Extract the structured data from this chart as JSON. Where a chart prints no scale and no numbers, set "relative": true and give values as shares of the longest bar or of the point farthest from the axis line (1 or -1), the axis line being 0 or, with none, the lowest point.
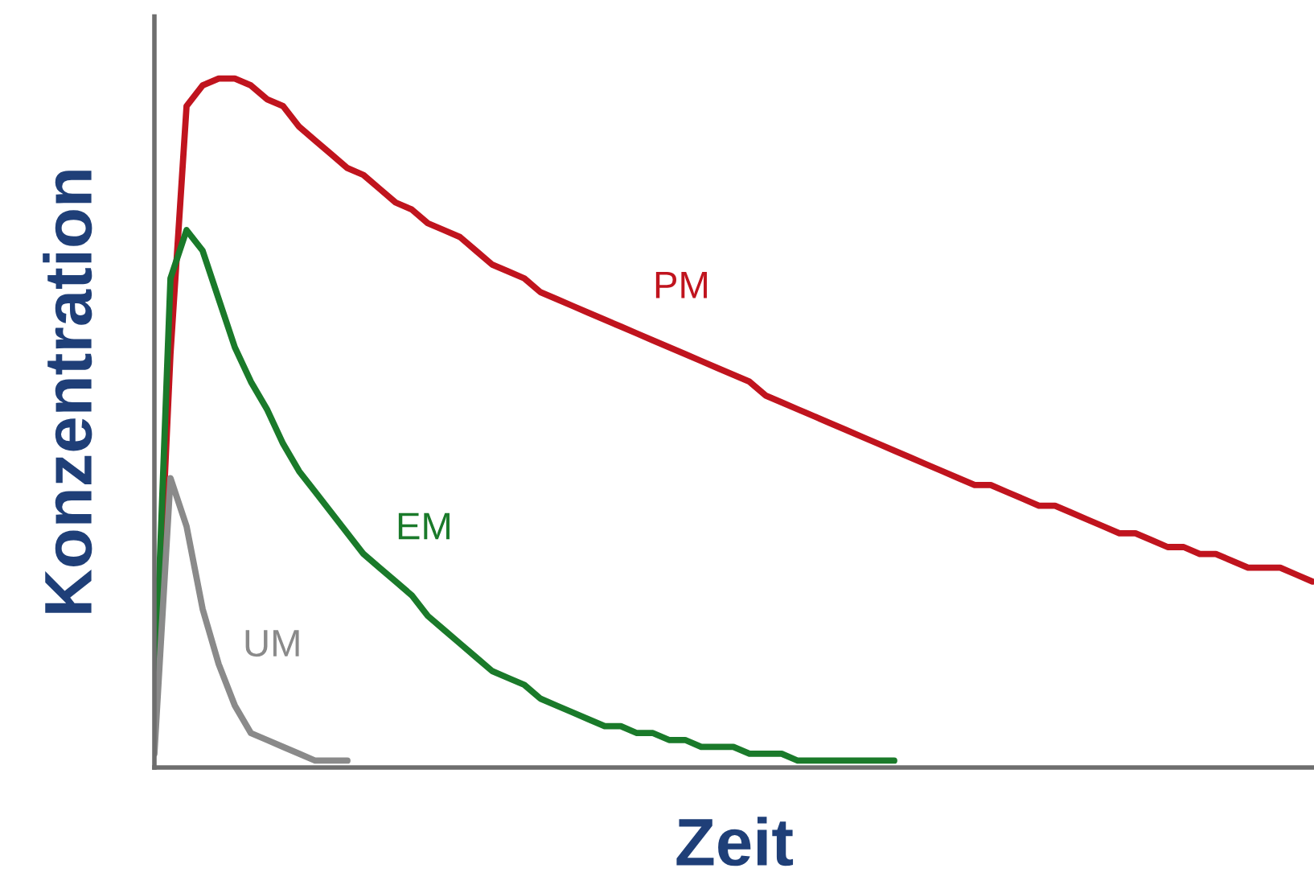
{
  "chart_data": {
    "type": "line",
    "relative": true,
    "xlabel": "Zeit",
    "ylabel": "Konzentration",
    "legend": false,
    "marker": "none",
    "line_style": "solid",
    "categories": [
      null,
      null,
      null,
      null,
      null,
      null,
      null,
      null,
      null,
      null,
      null,
      null,
      null,
      null,
      null,
      null,
      null,
      null,
      null,
      null,
      null,
      null,
      null,
      null,
      null,
      null,
      null,
      null,
      null,
      null,
      null,
      null,
      null,
      null,
      null,
      null,
      null,
      null,
      null,
      null,
      null,
      null,
      null,
      null,
      null,
      null,
      null,
      null,
      null,
      null,
      null,
      null,
      null,
      null,
      null,
      null,
      null,
      null,
      null,
      null,
      null,
      null,
      null,
      null,
      null,
      null,
      null,
      null,
      null,
      null,
      null,
      null,
      null
    ],
    "series": [
      {
        "name": "PM",
        "color": "#c0141e",
        "values": [
          0.09,
          0.6,
          0.96,
          0.99,
          1.0,
          1.0,
          0.99,
          0.97,
          0.96,
          0.93,
          0.91,
          0.89,
          0.87,
          0.86,
          0.84,
          0.82,
          0.81,
          0.79,
          0.78,
          0.77,
          0.75,
          0.73,
          0.72,
          0.71,
          0.69,
          0.68,
          0.67,
          0.66,
          0.65,
          0.64,
          0.63,
          0.62,
          0.61,
          0.6,
          0.59,
          0.58,
          0.57,
          0.56,
          0.54,
          0.53,
          0.52,
          0.51,
          0.5,
          0.49,
          0.48,
          0.47,
          0.46,
          0.45,
          0.44,
          0.43,
          0.42,
          0.41,
          0.41,
          0.4,
          0.39,
          0.38,
          0.38,
          0.37,
          0.36,
          0.35,
          0.34,
          0.34,
          0.33,
          0.32,
          0.32,
          0.31,
          0.31,
          0.3,
          0.29,
          0.29,
          0.29,
          0.28,
          0.27
        ]
      },
      {
        "name": "EM",
        "color": "#1a7a2a",
        "values": [
          0.09,
          0.71,
          0.78,
          0.75,
          0.68,
          0.61,
          0.56,
          0.52,
          0.47,
          0.43,
          0.4,
          0.37,
          0.34,
          0.31,
          0.29,
          0.27,
          0.25,
          0.22,
          0.2,
          0.18,
          0.16,
          0.14,
          0.13,
          0.12,
          0.1,
          0.09,
          0.08,
          0.07,
          0.06,
          0.06,
          0.05,
          0.05,
          0.04,
          0.04,
          0.03,
          0.03,
          0.03,
          0.02,
          0.02,
          0.02,
          0.01,
          0.01,
          0.01,
          0.01,
          0.01,
          0.01,
          0.01,
          null,
          null,
          null,
          null,
          null,
          null,
          null,
          null,
          null,
          null,
          null,
          null,
          null,
          null,
          null,
          null,
          null,
          null,
          null,
          null,
          null,
          null,
          null,
          null,
          null,
          null
        ]
      },
      {
        "name": "UM",
        "color": "#8a8a8a",
        "values": [
          0.02,
          0.42,
          0.35,
          0.23,
          0.15,
          0.09,
          0.05,
          0.04,
          0.03,
          0.02,
          0.01,
          0.01,
          0.01,
          null,
          null,
          null,
          null,
          null,
          null,
          null,
          null,
          null,
          null,
          null,
          null,
          null,
          null,
          null,
          null,
          null,
          null,
          null,
          null,
          null,
          null,
          null,
          null,
          null,
          null,
          null,
          null,
          null,
          null,
          null,
          null,
          null,
          null,
          null,
          null,
          null,
          null,
          null,
          null,
          null,
          null,
          null,
          null,
          null,
          null,
          null,
          null,
          null,
          null,
          null,
          null,
          null,
          null,
          null,
          null,
          null,
          null,
          null,
          null
        ]
      }
    ]
  }
}
